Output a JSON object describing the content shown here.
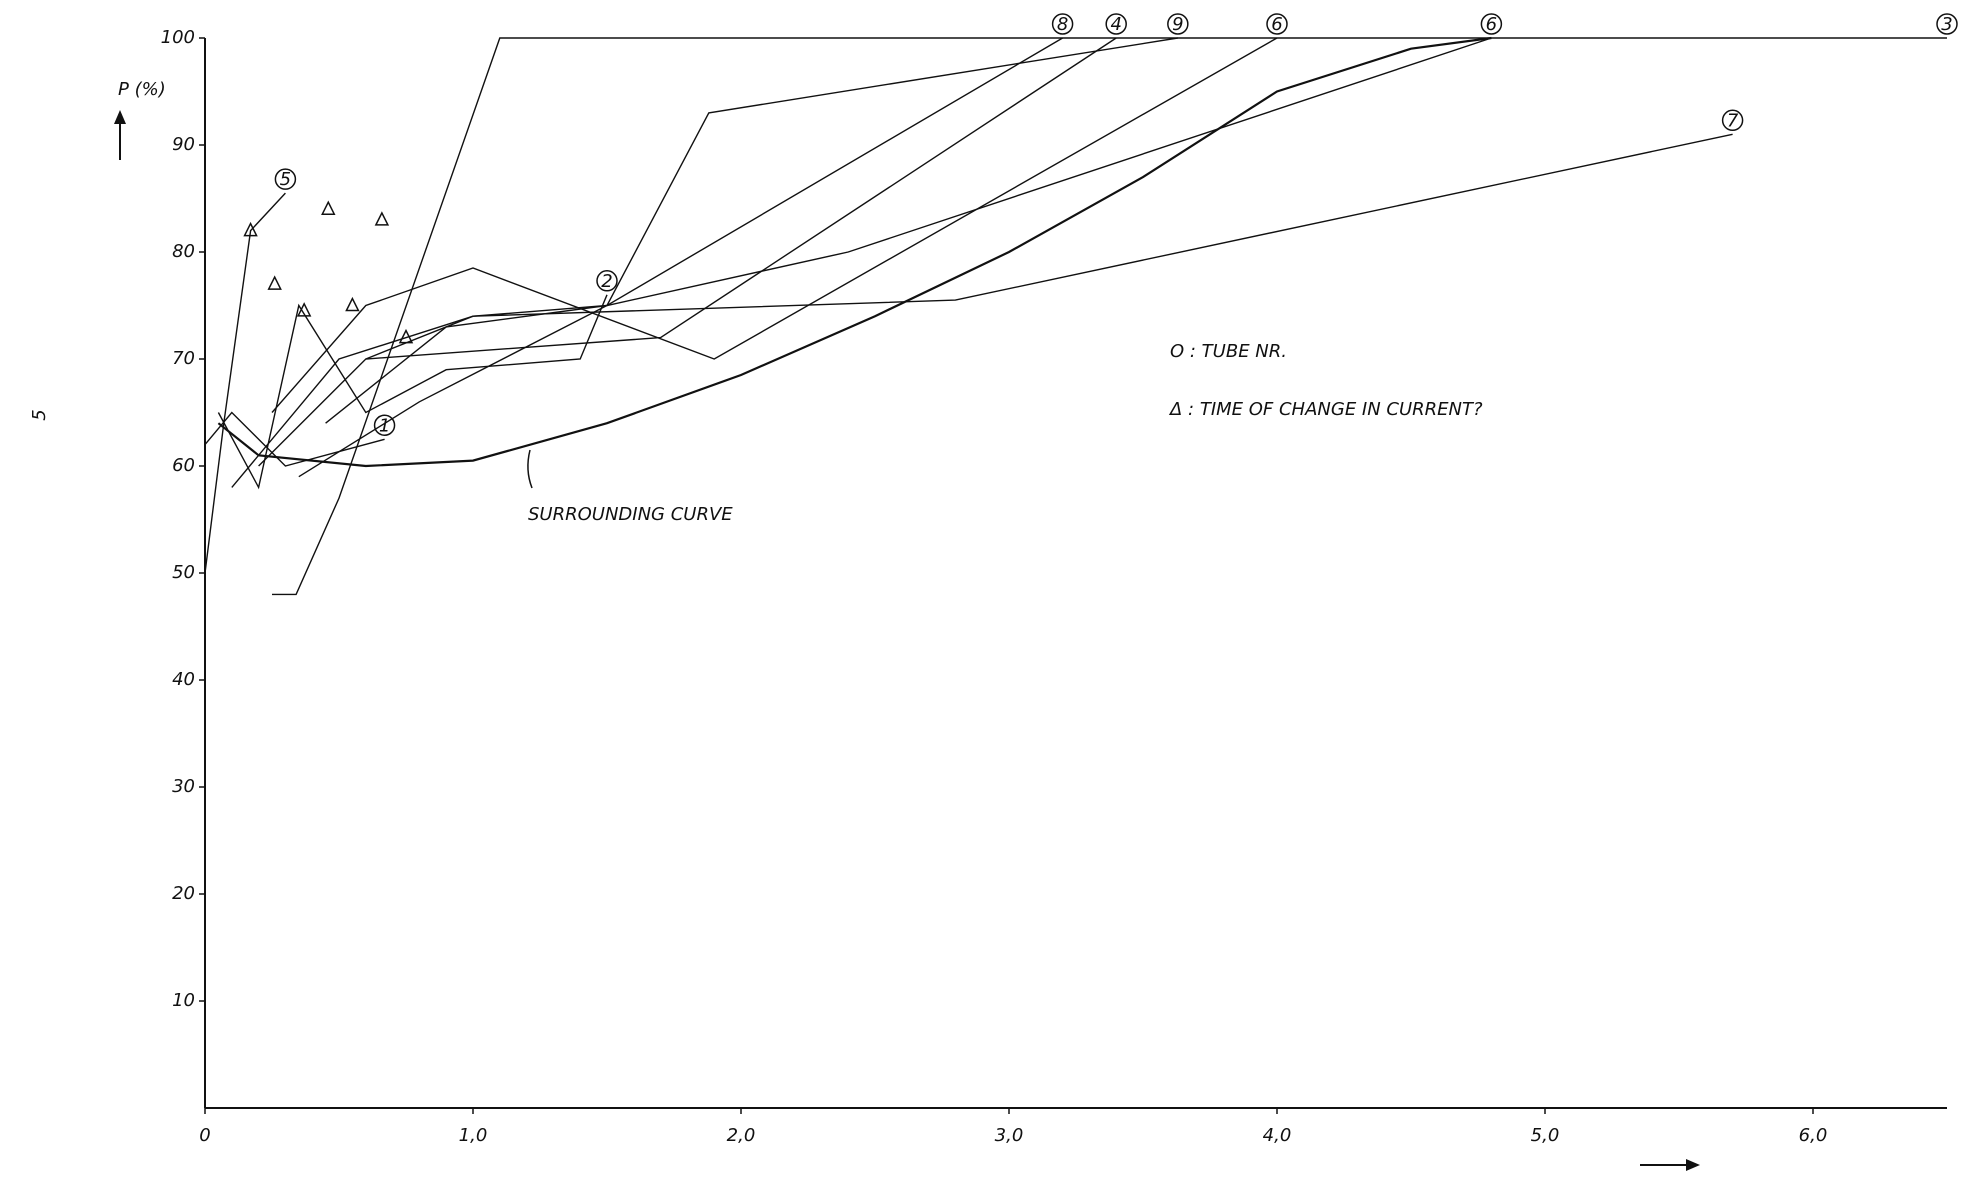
{
  "chart_data": {
    "type": "line",
    "ylabel": "P (%)",
    "side_mark": "5",
    "annotations": [
      "O : TUBE NR.",
      "Δ : TIME OF CHANGE IN CURRENT?",
      "SURROUNDING CURVE"
    ],
    "xlim": [
      0,
      6.5
    ],
    "ylim": [
      0,
      100
    ],
    "xticks": [
      0,
      {
        "value": 1,
        "label": "1,0"
      },
      {
        "value": 2,
        "label": "2,0"
      },
      {
        "value": 3,
        "label": "3,0"
      },
      {
        "value": 4,
        "label": "4,0"
      },
      {
        "value": 5,
        "label": "5,0"
      },
      {
        "value": 6,
        "label": "6,0"
      }
    ],
    "yticks": [
      10,
      20,
      30,
      40,
      50,
      60,
      70,
      80,
      90,
      100
    ],
    "color": "#111111",
    "series": [
      {
        "name": "1",
        "x": [
          0,
          0.1,
          0.3,
          0.67
        ],
        "values": [
          62,
          65,
          60,
          62.5
        ]
      },
      {
        "name": "2",
        "x": [
          0.05,
          0.2,
          0.35,
          0.6,
          0.9,
          1.4,
          1.5
        ],
        "values": [
          65,
          58,
          75,
          65,
          69,
          70,
          76
        ]
      },
      {
        "name": "3",
        "x": [
          0.25,
          0.34,
          0.5,
          1.1,
          6.5
        ],
        "values": [
          48,
          48,
          57,
          100,
          100
        ]
      },
      {
        "name": "5",
        "x": [
          0,
          0.07,
          0.17,
          0.3
        ],
        "values": [
          50,
          64,
          82,
          85.5
        ]
      },
      {
        "name": "8",
        "x": [
          0.1,
          0.5,
          1.0,
          1.5,
          3.2
        ],
        "values": [
          58,
          70,
          74,
          75,
          100
        ]
      },
      {
        "name": "4",
        "x": [
          0.2,
          0.6,
          1.7,
          3.4
        ],
        "values": [
          60,
          70,
          72,
          100
        ]
      },
      {
        "name": "9",
        "x": [
          0.35,
          0.8,
          1.5,
          1.88,
          3.63
        ],
        "values": [
          59,
          66,
          75,
          93,
          100
        ]
      },
      {
        "name": "6",
        "x": [
          0.25,
          0.6,
          1.0,
          1.9,
          4.0
        ],
        "values": [
          65,
          75,
          78.5,
          70,
          100
        ]
      },
      {
        "name": "6",
        "x": [
          0.45,
          0.9,
          1.5,
          2.4,
          4.8
        ],
        "values": [
          64,
          73,
          75,
          80,
          100
        ]
      },
      {
        "name": "7",
        "x": [
          0.6,
          1.0,
          2.8,
          5.7
        ],
        "values": [
          70,
          74,
          75.5,
          91
        ]
      },
      {
        "x": [
          0.05,
          0.2,
          0.6,
          1.0,
          1.5,
          2.0,
          2.5,
          3.0,
          3.5,
          4.0,
          4.5,
          4.8
        ],
        "values": [
          64,
          61,
          60,
          60.5,
          64,
          68.5,
          74,
          80,
          87,
          95,
          99,
          100
        ]
      }
    ],
    "change_points": {
      "x": [
        0.17,
        0.26,
        0.37,
        0.46,
        0.55,
        0.66,
        0.75
      ],
      "values": [
        82,
        77,
        74.5,
        84,
        75,
        83,
        72
      ]
    }
  }
}
